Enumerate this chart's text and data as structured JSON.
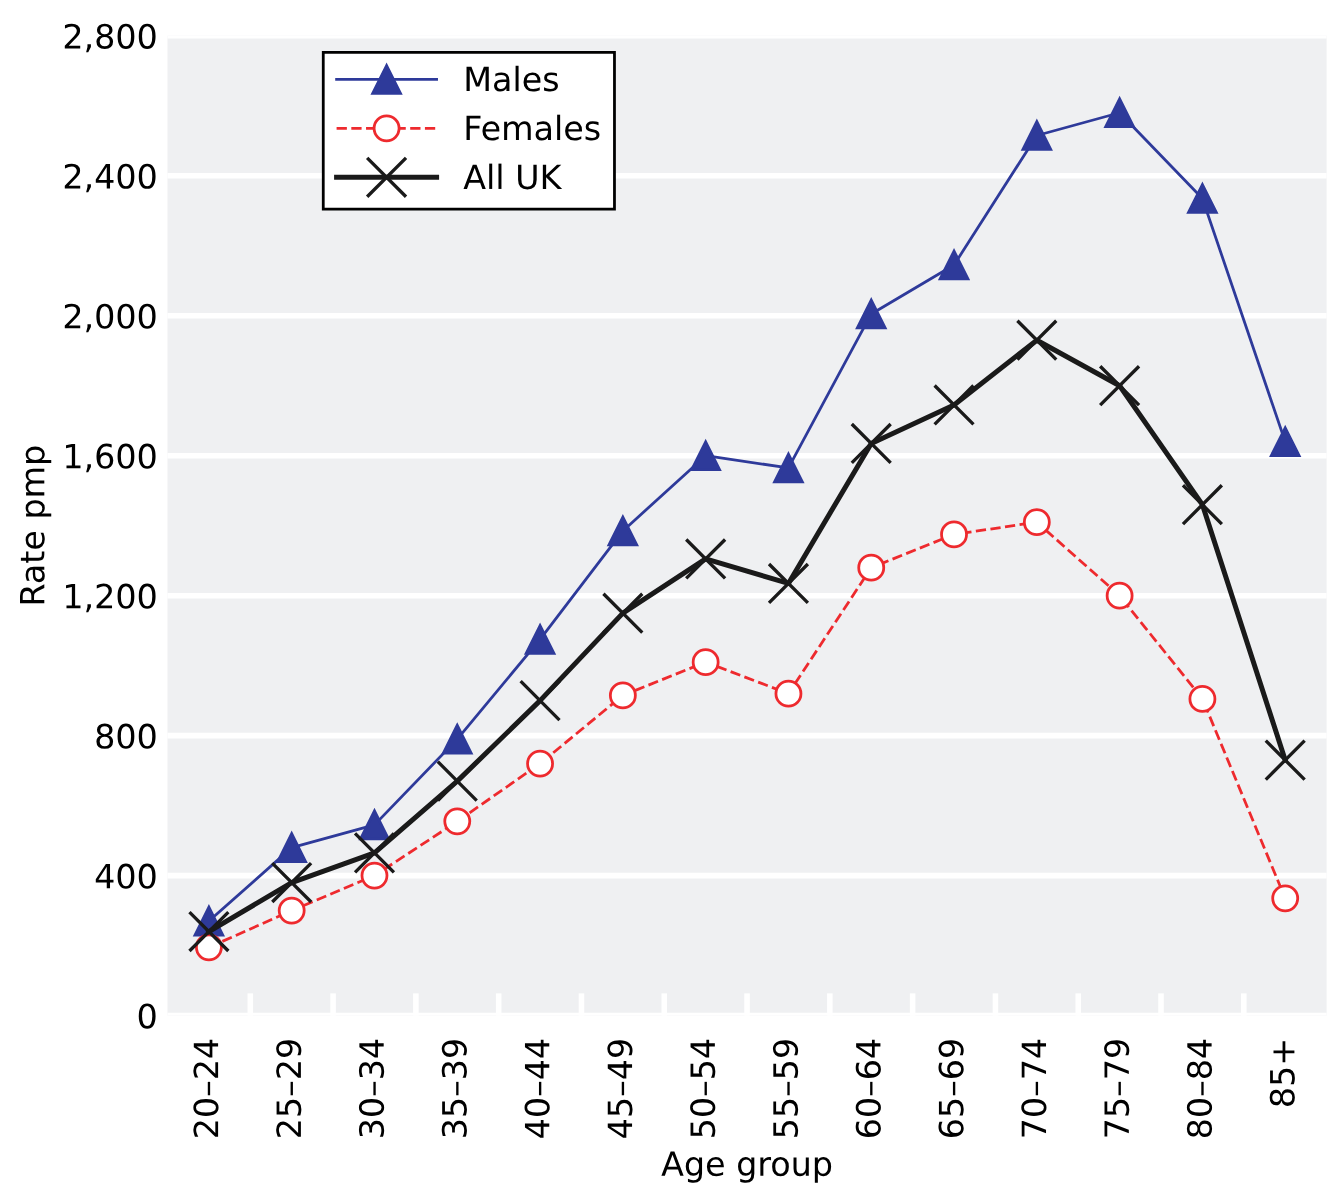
{
  "chart_data": {
    "type": "line",
    "xlabel": "Age group",
    "ylabel": "Rate pmp",
    "categories": [
      "20–24",
      "25–29",
      "30–34",
      "35–39",
      "40–44",
      "45–49",
      "50–54",
      "55–59",
      "60–64",
      "65–69",
      "70–74",
      "75–79",
      "80–84",
      "85+"
    ],
    "series": [
      {
        "name": "Males",
        "color": "#2e3a9a",
        "marker": "triangle",
        "line_style": "solid",
        "values": [
          270,
          480,
          545,
          790,
          1075,
          1385,
          1600,
          1565,
          2005,
          2145,
          2515,
          2580,
          2335,
          1640
        ]
      },
      {
        "name": "Females",
        "color": "#ee2a2e",
        "marker": "circle",
        "line_style": "dashed",
        "values": [
          195,
          300,
          400,
          555,
          720,
          915,
          1010,
          920,
          1280,
          1375,
          1410,
          1200,
          905,
          335
        ]
      },
      {
        "name": "All UK",
        "color": "#1a1a1a",
        "marker": "cross",
        "line_style": "solid",
        "values": [
          240,
          380,
          465,
          670,
          900,
          1150,
          1305,
          1235,
          1635,
          1745,
          1930,
          1800,
          1460,
          730
        ]
      }
    ],
    "ylim": [
      0,
      2800
    ],
    "yticks": [
      0,
      {
        "value": 400,
        "label": "400"
      },
      {
        "value": 800,
        "label": "800"
      },
      {
        "value": 1200,
        "label": "1,200"
      },
      {
        "value": 1600,
        "label": "1,600"
      },
      {
        "value": 2000,
        "label": "2,000"
      },
      {
        "value": 2400,
        "label": "2,400"
      },
      {
        "value": 2800,
        "label": "2,800"
      }
    ],
    "grid": "y",
    "legend": "top left"
  }
}
